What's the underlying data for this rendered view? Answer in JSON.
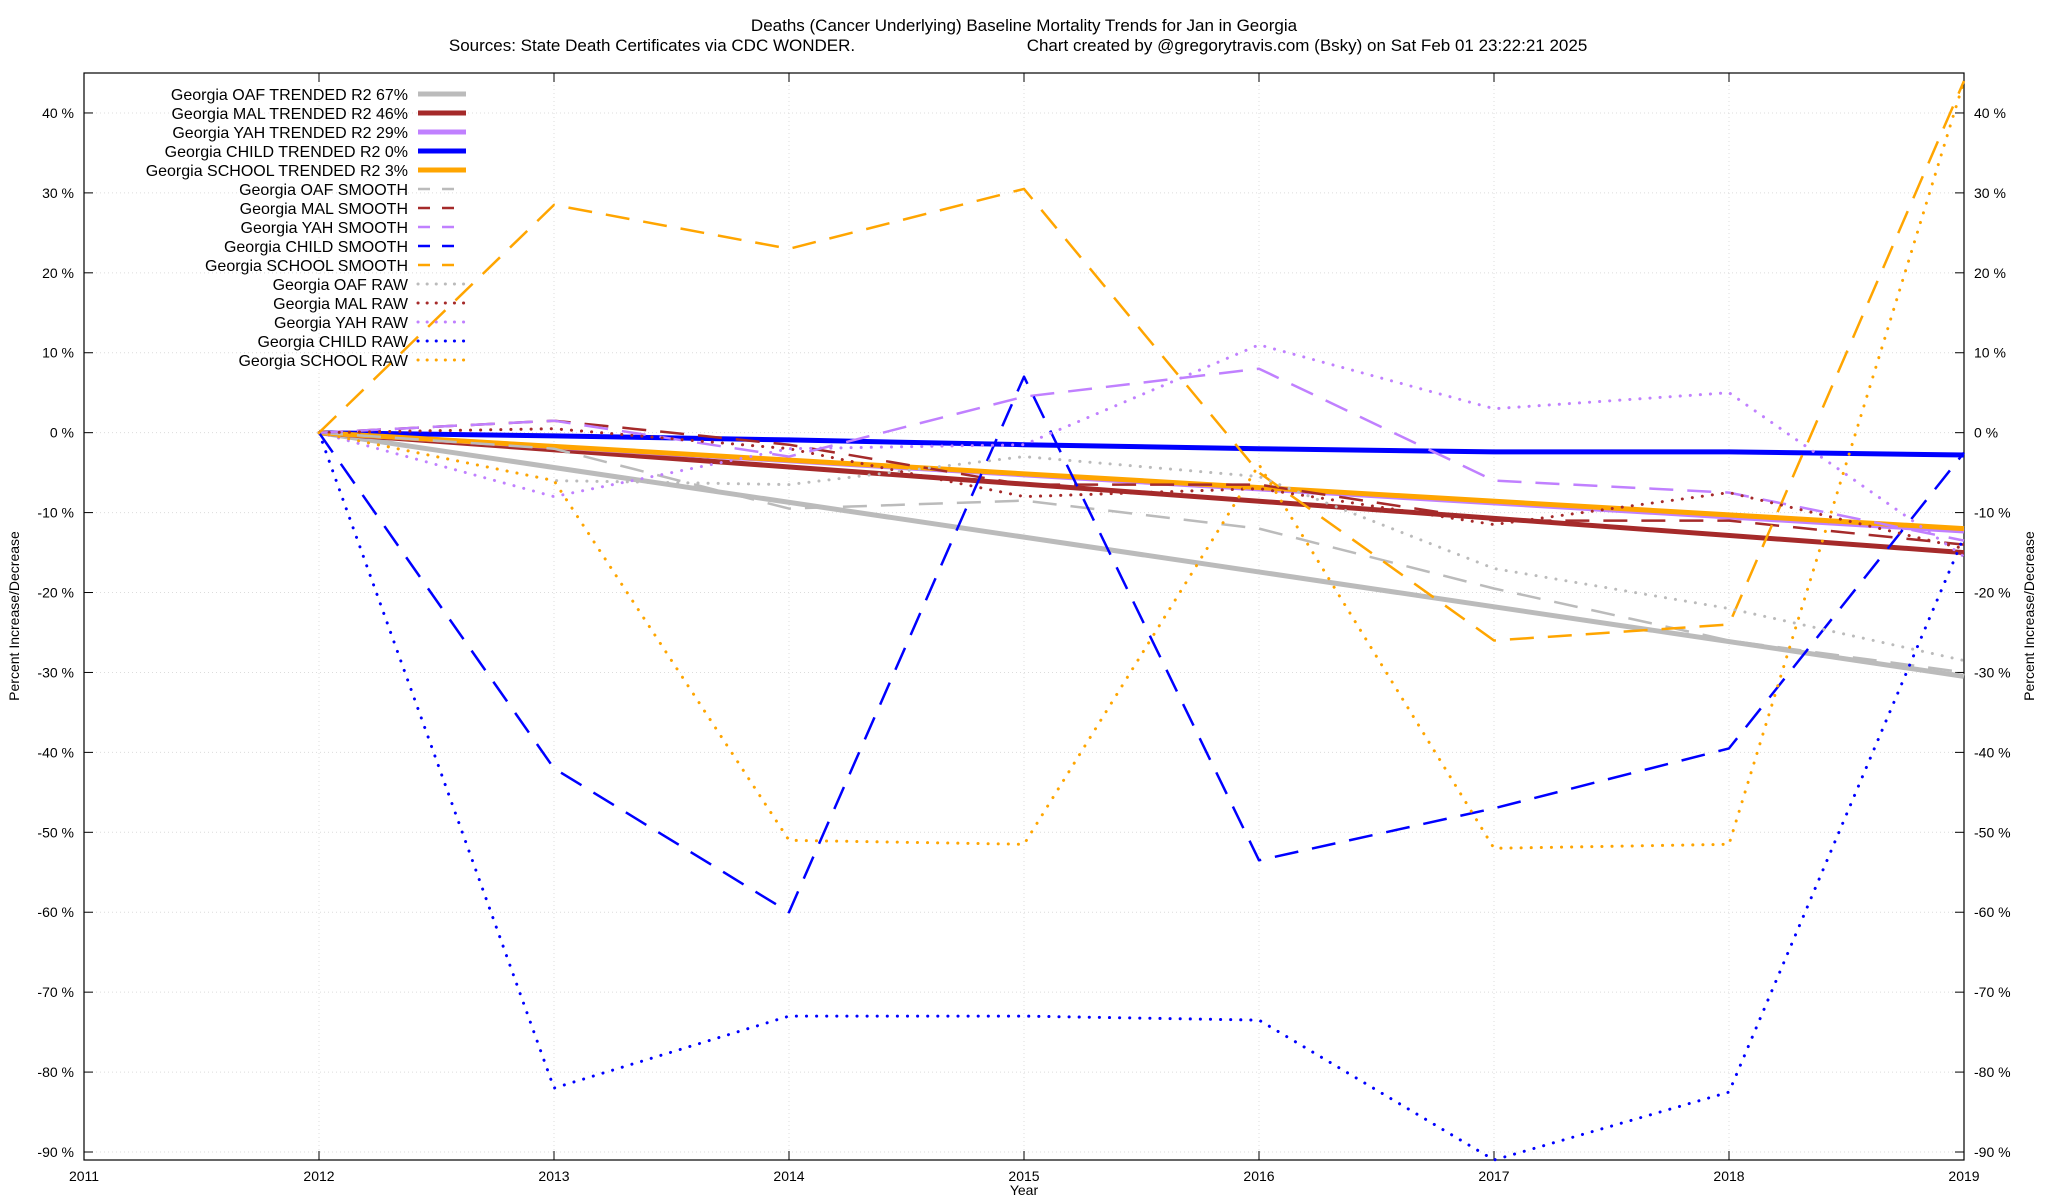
{
  "chart_data": {
    "type": "line",
    "title": "Deaths (Cancer Underlying)  Baseline Mortality Trends for Jan in Georgia",
    "subtitle_left": "Sources: State Death Certificates via CDC WONDER.",
    "subtitle_right": "Chart created by @gregorytravis.com (Bsky) on Sat Feb 01 23:22:21 2025",
    "xlabel": "Year",
    "ylabel": "Percent Increase/Decrease",
    "ylabel_right": "Percent Increase/Decrease",
    "xlim": [
      2011,
      2019
    ],
    "ylim": [
      -91,
      45
    ],
    "x_ticks": [
      "2011",
      "2012",
      "2013",
      "2014",
      "2015",
      "2016",
      "2017",
      "2018",
      "2019"
    ],
    "y_ticks": [
      {
        "value": 40,
        "label": "40 %"
      },
      {
        "value": 30,
        "label": "30 %"
      },
      {
        "value": 20,
        "label": "20 %"
      },
      {
        "value": 10,
        "label": "10 %"
      },
      {
        "value": 0,
        "label": "0 %"
      },
      {
        "value": -10,
        "label": "-10 %"
      },
      {
        "value": -20,
        "label": "-20 %"
      },
      {
        "value": -30,
        "label": "-30 %"
      },
      {
        "value": -40,
        "label": "-40 %"
      },
      {
        "value": -50,
        "label": "-50 %"
      },
      {
        "value": -60,
        "label": "-60 %"
      },
      {
        "value": -70,
        "label": "-70 %"
      },
      {
        "value": -80,
        "label": "-80 %"
      },
      {
        "value": -90,
        "label": "-90 %"
      }
    ],
    "grid": true,
    "legend_position": "top-left",
    "series": [
      {
        "name": "Georgia OAF TRENDED R2  67%",
        "style": "solid",
        "color": "#bbbbbb",
        "x": [
          2012,
          2019
        ],
        "y": [
          0,
          -30.5
        ]
      },
      {
        "name": "Georgia MAL TRENDED R2  46%",
        "style": "solid",
        "color": "#a52a2a",
        "x": [
          2012,
          2019
        ],
        "y": [
          0,
          -15
        ]
      },
      {
        "name": "Georgia YAH TRENDED R2  29%",
        "style": "solid",
        "color": "#c080ff",
        "x": [
          2012,
          2019
        ],
        "y": [
          0,
          -12.3
        ]
      },
      {
        "name": "Georgia CHILD TRENDED R2  0%",
        "style": "solid",
        "color": "#0000ff",
        "x": [
          2012,
          2013,
          2014,
          2015,
          2016,
          2017,
          2018,
          2019
        ],
        "y": [
          0,
          -0.4,
          -0.9,
          -1.5,
          -2.0,
          -2.4,
          -2.4,
          -2.8
        ]
      },
      {
        "name": "Georgia SCHOOL TRENDED R2  3%",
        "style": "solid",
        "color": "#ffa500",
        "x": [
          2012,
          2019
        ],
        "y": [
          0,
          -12
        ]
      },
      {
        "name": "Georgia OAF SMOOTH",
        "style": "dashed",
        "color": "#bbbbbb",
        "x": [
          2012,
          2013,
          2014,
          2015,
          2016,
          2017,
          2018,
          2019
        ],
        "y": [
          0,
          -2,
          -9.5,
          -8.5,
          -12,
          -19.5,
          -26,
          -30
        ]
      },
      {
        "name": "Georgia MAL SMOOTH",
        "style": "dashed",
        "color": "#a52a2a",
        "x": [
          2012,
          2013,
          2014,
          2015,
          2016,
          2017,
          2018,
          2019
        ],
        "y": [
          0,
          1.5,
          -1.5,
          -6.5,
          -6.5,
          -11,
          -11,
          -14
        ]
      },
      {
        "name": "Georgia YAH SMOOTH",
        "style": "dashed",
        "color": "#c080ff",
        "x": [
          2012,
          2013,
          2014,
          2015,
          2016,
          2017,
          2018,
          2019
        ],
        "y": [
          0,
          1.5,
          -3,
          4.5,
          8,
          -6,
          -7.5,
          -13.5
        ]
      },
      {
        "name": "Georgia CHILD SMOOTH",
        "style": "dashed",
        "color": "#0000ff",
        "x": [
          2012,
          2013,
          2014,
          2015,
          2016,
          2017,
          2018,
          2019
        ],
        "y": [
          0,
          -42,
          -60,
          7,
          -53.5,
          -47,
          -39.5,
          -2.5
        ]
      },
      {
        "name": "Georgia SCHOOL SMOOTH",
        "style": "dashed",
        "color": "#ffa500",
        "x": [
          2012,
          2013,
          2014,
          2015,
          2016,
          2017,
          2018,
          2019
        ],
        "y": [
          0,
          28.5,
          23,
          30.5,
          -5,
          -26,
          -24,
          44
        ]
      },
      {
        "name": "Georgia OAF RAW",
        "style": "dotted",
        "color": "#bbbbbb",
        "x": [
          2012,
          2013,
          2014,
          2015,
          2016,
          2017,
          2018,
          2019
        ],
        "y": [
          0,
          -6,
          -6.5,
          -3,
          -5.5,
          -17,
          -22,
          -28.5
        ]
      },
      {
        "name": "Georgia MAL RAW",
        "style": "dotted",
        "color": "#a52a2a",
        "x": [
          2012,
          2013,
          2014,
          2015,
          2016,
          2017,
          2018,
          2019
        ],
        "y": [
          0,
          0.5,
          -2,
          -8,
          -7,
          -11.5,
          -7.5,
          -14.5
        ]
      },
      {
        "name": "Georgia YAH RAW",
        "style": "dotted",
        "color": "#c080ff",
        "x": [
          2012,
          2013,
          2014,
          2015,
          2016,
          2017,
          2018,
          2019
        ],
        "y": [
          0,
          -8,
          -2,
          -1.5,
          11,
          3,
          5,
          -15.5
        ]
      },
      {
        "name": "Georgia CHILD RAW",
        "style": "dotted",
        "color": "#0000ff",
        "x": [
          2012,
          2013,
          2014,
          2015,
          2016,
          2017,
          2018,
          2019
        ],
        "y": [
          0,
          -82,
          -73,
          -73,
          -73.5,
          -91,
          -82.5,
          -13
        ]
      },
      {
        "name": "Georgia SCHOOL RAW",
        "style": "dotted",
        "color": "#ffa500",
        "x": [
          2012,
          2013,
          2014,
          2015,
          2016,
          2017,
          2018,
          2019
        ],
        "y": [
          0,
          -6,
          -51,
          -51.5,
          -4,
          -52,
          -51.5,
          44
        ]
      }
    ]
  }
}
